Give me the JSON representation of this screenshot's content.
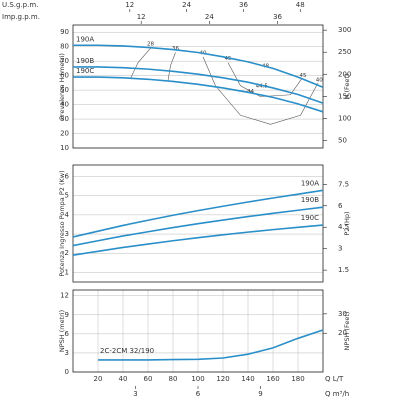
{
  "chart_data": [
    {
      "type": "line",
      "y_label": "Prevalenza H (metri)",
      "y2_label": "H (Feet)",
      "xlim": [
        0,
        200
      ],
      "ylim": [
        10,
        95
      ],
      "yticks": [
        10,
        20,
        30,
        40,
        50,
        60,
        70,
        80,
        90
      ],
      "y2lim": [
        32.8,
        311.7
      ],
      "y2ticks": [
        50,
        100,
        150,
        200,
        250,
        300
      ],
      "grid": true,
      "top_axes": [
        {
          "label": "U.S.g.p.m.",
          "lim": [
            0,
            52.8
          ],
          "ticks": [
            12,
            24,
            36,
            48
          ]
        },
        {
          "label": "Imp.g.p.m.",
          "lim": [
            0,
            44
          ],
          "ticks": [
            12,
            24,
            36
          ]
        }
      ],
      "x": [
        0,
        20,
        40,
        60,
        80,
        100,
        120,
        140,
        160,
        180,
        200
      ],
      "series": [
        {
          "name": "190A",
          "color": "#2a8fc9",
          "values": [
            81,
            81,
            80.5,
            79.5,
            78,
            76,
            73,
            69.5,
            65,
            59,
            52
          ]
        },
        {
          "name": "190B",
          "color": "#2a8fc9",
          "values": [
            66,
            66,
            65.5,
            64.5,
            63,
            61,
            58.5,
            55.5,
            51.5,
            47,
            41
          ]
        },
        {
          "name": "190C",
          "color": "#2a8fc9",
          "values": [
            59,
            59,
            58.5,
            57.5,
            56,
            54,
            51.5,
            48.5,
            45,
            40.5,
            35
          ]
        }
      ],
      "contours": [
        {
          "label": "28",
          "color": "#555555",
          "x": [
            62,
            52,
            46
          ],
          "y": [
            79,
            69,
            58
          ]
        },
        {
          "label": "36",
          "color": "#555555",
          "x": [
            82,
            78,
            76
          ],
          "y": [
            76,
            67,
            56.5
          ]
        },
        {
          "label": "40",
          "color": "#555555",
          "x": [
            104,
            114,
            134,
            158,
            182,
            196
          ],
          "y": [
            73,
            53,
            32.6,
            26.4,
            32.6,
            55
          ]
        },
        {
          "label": "45",
          "color": "#555555",
          "x": [
            124,
            134,
            150,
            174,
            183
          ],
          "y": [
            69,
            53,
            45.5,
            46.8,
            58
          ]
        }
      ],
      "annotations": [
        {
          "text": "48",
          "x": 154,
          "y": 66.5
        },
        {
          "text": "45",
          "x": 184,
          "y": 60
        },
        {
          "text": "40",
          "x": 197,
          "y": 57
        },
        {
          "text": "44",
          "x": 142,
          "y": 49
        },
        {
          "text": "44.5",
          "x": 151,
          "y": 53
        }
      ]
    },
    {
      "type": "line",
      "y_label": "Potenza Ingresso Pompa P2 (Kw)",
      "y2_label": "P2 (Hp)",
      "xlim": [
        0,
        200
      ],
      "ylim": [
        0.5,
        6.6
      ],
      "yticks": [
        1,
        2,
        3,
        4,
        5,
        6
      ],
      "y2lim": [
        0.67,
        8.85
      ],
      "y2ticks": [
        1.5,
        3,
        4.5,
        6,
        7.5
      ],
      "grid": true,
      "x": [
        0,
        20,
        40,
        60,
        80,
        100,
        120,
        140,
        160,
        180,
        200
      ],
      "series": [
        {
          "name": "190A",
          "color": "#2a8fc9",
          "values": [
            2.85,
            3.15,
            3.45,
            3.72,
            3.98,
            4.22,
            4.45,
            4.67,
            4.88,
            5.08,
            5.28
          ]
        },
        {
          "name": "190B",
          "color": "#2a8fc9",
          "values": [
            2.4,
            2.65,
            2.9,
            3.12,
            3.34,
            3.54,
            3.73,
            3.91,
            4.08,
            4.24,
            4.4
          ]
        },
        {
          "name": "190C",
          "color": "#2a8fc9",
          "values": [
            1.9,
            2.1,
            2.3,
            2.48,
            2.65,
            2.81,
            2.96,
            3.1,
            3.23,
            3.35,
            3.47
          ]
        }
      ]
    },
    {
      "type": "line",
      "y_label": "NPSH (metri)",
      "y2_label": "NPSH (Feet)",
      "xlim": [
        0,
        200
      ],
      "ylim": [
        0,
        12.9
      ],
      "yticks": [
        0,
        3,
        6,
        9,
        12
      ],
      "y2lim": [
        0,
        42.3
      ],
      "y2ticks": [
        20,
        30
      ],
      "grid": true,
      "xticks": [
        20,
        40,
        60,
        80,
        100,
        120,
        140,
        160,
        180
      ],
      "x_label": "Q  L/T",
      "bottom_axes": [
        {
          "label": "Q  m³/h",
          "lim": [
            0,
            12
          ],
          "ticks": [
            3,
            6,
            9
          ]
        }
      ],
      "x": [
        20,
        40,
        60,
        80,
        100,
        120,
        140,
        160,
        180,
        200
      ],
      "series": [
        {
          "name": "2C-2CM 32/190",
          "color": "#2a8fc9",
          "values": [
            1.9,
            1.9,
            1.9,
            1.95,
            2.0,
            2.2,
            2.8,
            3.8,
            5.3,
            6.6
          ]
        }
      ]
    }
  ]
}
